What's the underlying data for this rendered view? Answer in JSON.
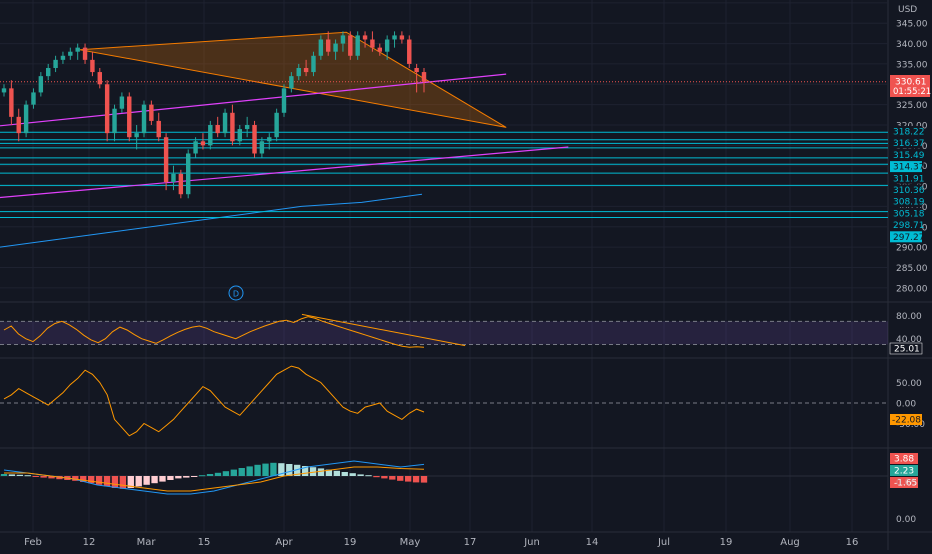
{
  "chart_data": [
    {
      "type": "candlestick",
      "currency": "USD",
      "ylim": [
        275,
        350
      ],
      "y_ticks": [
        280,
        285,
        290,
        295,
        300,
        305,
        310,
        315,
        320,
        325,
        330,
        335,
        340,
        345,
        350
      ],
      "x_tick_labels": [
        "Feb",
        "12",
        "Mar",
        "15",
        "Apr",
        "19",
        "May",
        "17",
        "Jun",
        "14",
        "Jul",
        "19",
        "Aug",
        "16"
      ],
      "last_price": "330.61",
      "countdown": "01:55:21",
      "last_price_color": "#ef5350",
      "level_labels": [
        "318.22",
        "316.37",
        "315.49",
        "314.37",
        "311.91",
        "310.36",
        "308.19",
        "305.18",
        "298.71",
        "297.27"
      ],
      "level_values": [
        318.22,
        316.37,
        315.49,
        314.37,
        311.91,
        310.36,
        308.19,
        305.18,
        298.71,
        297.27
      ],
      "level_color": "#00bcd4",
      "ma_color": "#2196f3",
      "trendline_color": "#e040fb",
      "triangle_color": "#f57c00",
      "up_color": "#26a69a",
      "down_color": "#ef5350",
      "marker_label": "D",
      "candles": [
        [
          328,
          330,
          327,
          329
        ],
        [
          329,
          331,
          320,
          322
        ],
        [
          322,
          324,
          316,
          318
        ],
        [
          318,
          326,
          317,
          325
        ],
        [
          325,
          329,
          324,
          328
        ],
        [
          328,
          333,
          327,
          332
        ],
        [
          332,
          335,
          331,
          334
        ],
        [
          334,
          337,
          333,
          336
        ],
        [
          336,
          338,
          335,
          337
        ],
        [
          337,
          339,
          336,
          338
        ],
        [
          338,
          340,
          336,
          339
        ],
        [
          339,
          340,
          335,
          336
        ],
        [
          336,
          338,
          332,
          333
        ],
        [
          333,
          334,
          329,
          330
        ],
        [
          330,
          331,
          316,
          318
        ],
        [
          318,
          325,
          316,
          324
        ],
        [
          324,
          328,
          323,
          327
        ],
        [
          327,
          328,
          316,
          317
        ],
        [
          317,
          320,
          314,
          318
        ],
        [
          318,
          326,
          317,
          325
        ],
        [
          325,
          326,
          320,
          321
        ],
        [
          321,
          323,
          316,
          317
        ],
        [
          317,
          318,
          304,
          306
        ],
        [
          306,
          310,
          304,
          308
        ],
        [
          308,
          309,
          302,
          303
        ],
        [
          303,
          314,
          302,
          313
        ],
        [
          313,
          317,
          312,
          316
        ],
        [
          316,
          318,
          314,
          315
        ],
        [
          315,
          321,
          314,
          320
        ],
        [
          320,
          322,
          317,
          318
        ],
        [
          318,
          324,
          317,
          323
        ],
        [
          323,
          325,
          315,
          316
        ],
        [
          316,
          320,
          315,
          319
        ],
        [
          319,
          322,
          317,
          320
        ],
        [
          320,
          321,
          312,
          313
        ],
        [
          313,
          317,
          312,
          316
        ],
        [
          316,
          318,
          314,
          317
        ],
        [
          317,
          324,
          316,
          323
        ],
        [
          323,
          330,
          322,
          329
        ],
        [
          329,
          333,
          328,
          332
        ],
        [
          332,
          335,
          331,
          334
        ],
        [
          334,
          336,
          332,
          333
        ],
        [
          333,
          338,
          332,
          337
        ],
        [
          337,
          342,
          336,
          341
        ],
        [
          341,
          343,
          337,
          338
        ],
        [
          338,
          341,
          336,
          340
        ],
        [
          340,
          343,
          338,
          342
        ],
        [
          342,
          343,
          336,
          337
        ],
        [
          337,
          343,
          336,
          342
        ],
        [
          342,
          343,
          339,
          341
        ],
        [
          341,
          343,
          338,
          339
        ],
        [
          339,
          340,
          337,
          338
        ],
        [
          338,
          342,
          336,
          341
        ],
        [
          341,
          343,
          339,
          342
        ],
        [
          342,
          343,
          340,
          341
        ],
        [
          341,
          342,
          334,
          335
        ],
        [
          334,
          335,
          328,
          333
        ],
        [
          333,
          334,
          328,
          330.61
        ]
      ],
      "ma": [
        290,
        292,
        294,
        296,
        298,
        300,
        301,
        303
      ],
      "triangle": [
        [
          0.09,
          338.5
        ],
        [
          0.39,
          342.8
        ],
        [
          0.57,
          319.4
        ]
      ],
      "trendlines": [
        {
          "points": [
            [
              0.0,
              319.8
            ],
            [
              0.57,
              332.5
            ]
          ]
        },
        {
          "points": [
            [
              0.0,
              302.2
            ],
            [
              0.64,
              314.6
            ]
          ]
        }
      ]
    },
    {
      "type": "line",
      "panel": "oscillator-1",
      "y_ticks": [
        40,
        80
      ],
      "y_tick_labels": [
        "40.00",
        "80.00"
      ],
      "bands": [
        30,
        70
      ],
      "band_fill": "#7e57c2",
      "last_value_label": "25.01",
      "last_value_color": "#ffffff",
      "line_color": "#ff9800",
      "values": [
        55,
        62,
        48,
        40,
        35,
        45,
        58,
        66,
        70,
        64,
        56,
        46,
        38,
        33,
        40,
        52,
        60,
        55,
        47,
        40,
        36,
        32,
        38,
        45,
        51,
        56,
        60,
        62,
        58,
        52,
        48,
        44,
        40,
        46,
        52,
        57,
        62,
        66,
        70,
        72,
        68,
        74,
        78,
        75,
        70,
        66,
        62,
        58,
        54,
        50,
        46,
        42,
        38,
        34,
        30,
        27,
        25,
        26,
        25
      ],
      "divergence_line": [
        [
          0.34,
          82
        ],
        [
          0.49,
          28
        ]
      ]
    },
    {
      "type": "line",
      "panel": "oscillator-2",
      "y_ticks": [
        -50,
        0,
        50
      ],
      "y_tick_labels": [
        "-50.00",
        "0.00",
        "50.00"
      ],
      "last_value_label": "-22.08",
      "last_value_color": "#ff9800",
      "line_color": "#ff9800",
      "values": [
        10,
        20,
        35,
        25,
        15,
        5,
        -5,
        10,
        25,
        45,
        60,
        80,
        70,
        50,
        20,
        -40,
        -60,
        -80,
        -70,
        -50,
        -60,
        -70,
        -55,
        -40,
        -20,
        0,
        20,
        40,
        30,
        10,
        -10,
        -20,
        -30,
        -10,
        10,
        30,
        50,
        70,
        80,
        90,
        85,
        70,
        60,
        50,
        30,
        10,
        -10,
        -20,
        -25,
        -10,
        -5,
        0,
        -20,
        -30,
        -40,
        -25,
        -15,
        -22
      ],
      "zero_line": 0
    },
    {
      "type": "histogram",
      "panel": "macd",
      "y_ticks": [
        0
      ],
      "y_tick_labels": [
        "0.00"
      ],
      "value_labels": [
        "3.88",
        "2.23",
        "-1.65"
      ],
      "value_label_colors": [
        "#ef5350",
        "#26a69a",
        "#ef5350"
      ],
      "macd_color": "#2196f3",
      "signal_color": "#ff9800",
      "histogram": [
        0.5,
        0.4,
        0.3,
        0.2,
        -0.2,
        -0.4,
        -0.6,
        -0.8,
        -1.0,
        -1.2,
        -1.5,
        -1.8,
        -2.2,
        -2.6,
        -3.0,
        -3.2,
        -3.0,
        -2.6,
        -2.2,
        -1.8,
        -1.4,
        -1.0,
        -0.6,
        -0.4,
        -0.2,
        0.2,
        0.5,
        0.8,
        1.2,
        1.6,
        2.0,
        2.4,
        2.8,
        3.1,
        3.3,
        3.2,
        3.0,
        2.8,
        2.5,
        2.2,
        1.9,
        1.6,
        1.3,
        1.0,
        0.7,
        0.4,
        0.2,
        -0.3,
        -0.6,
        -0.9,
        -1.2,
        -1.4,
        -1.6,
        -1.65
      ],
      "macd": [
        2,
        1,
        0,
        -1,
        -3,
        -4,
        -5,
        -6,
        -6,
        -5,
        -3,
        -1,
        1,
        3,
        4,
        5,
        4,
        3,
        3.88
      ],
      "signal": [
        1,
        1,
        0,
        -1,
        -2,
        -3,
        -4,
        -5,
        -5,
        -4,
        -3,
        -2,
        0,
        1,
        2,
        3,
        3,
        2.5,
        2.23
      ]
    }
  ]
}
